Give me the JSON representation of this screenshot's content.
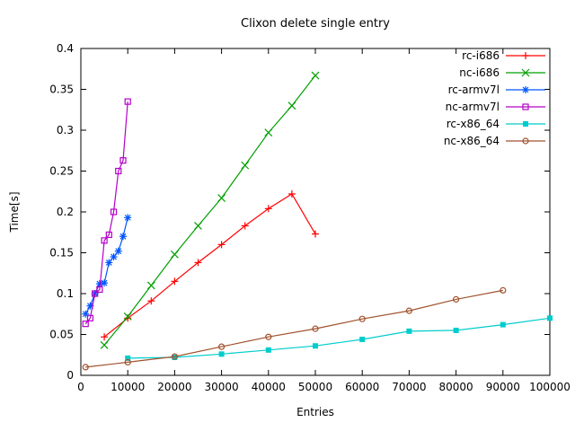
{
  "chart_data": {
    "type": "line",
    "title": "Clixon delete single entry",
    "xlabel": "Entries",
    "ylabel": "Time[s]",
    "xlim": [
      0,
      100000
    ],
    "ylim": [
      0,
      0.4
    ],
    "grid": false,
    "legend_position": "top-right-inside",
    "xticks": [
      0,
      10000,
      20000,
      30000,
      40000,
      50000,
      60000,
      70000,
      80000,
      90000,
      100000
    ],
    "xticklabels": [
      "0",
      "10000",
      "20000",
      "30000",
      "40000",
      "50000",
      "60000",
      "70000",
      "80000",
      "90000",
      "100000"
    ],
    "yticks": [
      0,
      0.05,
      0.1,
      0.15,
      0.2,
      0.25,
      0.3,
      0.35,
      0.4
    ],
    "yticklabels": [
      "0",
      "0.05",
      "0.1",
      "0.15",
      "0.2",
      "0.25",
      "0.3",
      "0.35",
      "0.4"
    ],
    "series": [
      {
        "name": "rc-i686",
        "color": "#ff0000",
        "marker": "plus",
        "points": [
          [
            5000,
            0.047
          ],
          [
            10000,
            0.07
          ],
          [
            15000,
            0.091
          ],
          [
            20000,
            0.115
          ],
          [
            25000,
            0.138
          ],
          [
            30000,
            0.16
          ],
          [
            35000,
            0.183
          ],
          [
            40000,
            0.204
          ],
          [
            45000,
            0.222
          ],
          [
            50000,
            0.173
          ]
        ]
      },
      {
        "name": "nc-i686",
        "color": "#00a000",
        "marker": "cross",
        "points": [
          [
            5000,
            0.037
          ],
          [
            10000,
            0.072
          ],
          [
            15000,
            0.11
          ],
          [
            20000,
            0.148
          ],
          [
            25000,
            0.183
          ],
          [
            30000,
            0.217
          ],
          [
            35000,
            0.257
          ],
          [
            40000,
            0.297
          ],
          [
            45000,
            0.33
          ],
          [
            50000,
            0.367
          ]
        ]
      },
      {
        "name": "rc-armv7l",
        "color": "#0055ff",
        "marker": "asterisk",
        "points": [
          [
            1000,
            0.075
          ],
          [
            2000,
            0.085
          ],
          [
            3000,
            0.1
          ],
          [
            4000,
            0.112
          ],
          [
            5000,
            0.113
          ],
          [
            6000,
            0.138
          ],
          [
            7000,
            0.145
          ],
          [
            8000,
            0.152
          ],
          [
            9000,
            0.17
          ],
          [
            10000,
            0.193
          ]
        ]
      },
      {
        "name": "nc-armv7l",
        "color": "#b400c8",
        "marker": "square-open",
        "points": [
          [
            1000,
            0.063
          ],
          [
            2000,
            0.07
          ],
          [
            3000,
            0.1
          ],
          [
            4000,
            0.105
          ],
          [
            5000,
            0.165
          ],
          [
            6000,
            0.172
          ],
          [
            7000,
            0.2
          ],
          [
            8000,
            0.25
          ],
          [
            9000,
            0.263
          ],
          [
            10000,
            0.335
          ]
        ]
      },
      {
        "name": "rc-x86_64",
        "color": "#00cccc",
        "marker": "square-filled",
        "points": [
          [
            10000,
            0.021
          ],
          [
            20000,
            0.022
          ],
          [
            30000,
            0.026
          ],
          [
            40000,
            0.031
          ],
          [
            50000,
            0.036
          ],
          [
            60000,
            0.044
          ],
          [
            70000,
            0.054
          ],
          [
            80000,
            0.055
          ],
          [
            90000,
            0.062
          ],
          [
            100000,
            0.07
          ]
        ]
      },
      {
        "name": "nc-x86_64",
        "color": "#a0522d",
        "marker": "circle-open",
        "points": [
          [
            1000,
            0.01
          ],
          [
            10000,
            0.016
          ],
          [
            20000,
            0.023
          ],
          [
            30000,
            0.035
          ],
          [
            40000,
            0.047
          ],
          [
            50000,
            0.057
          ],
          [
            60000,
            0.069
          ],
          [
            70000,
            0.079
          ],
          [
            80000,
            0.093
          ],
          [
            90000,
            0.104
          ]
        ]
      }
    ]
  }
}
